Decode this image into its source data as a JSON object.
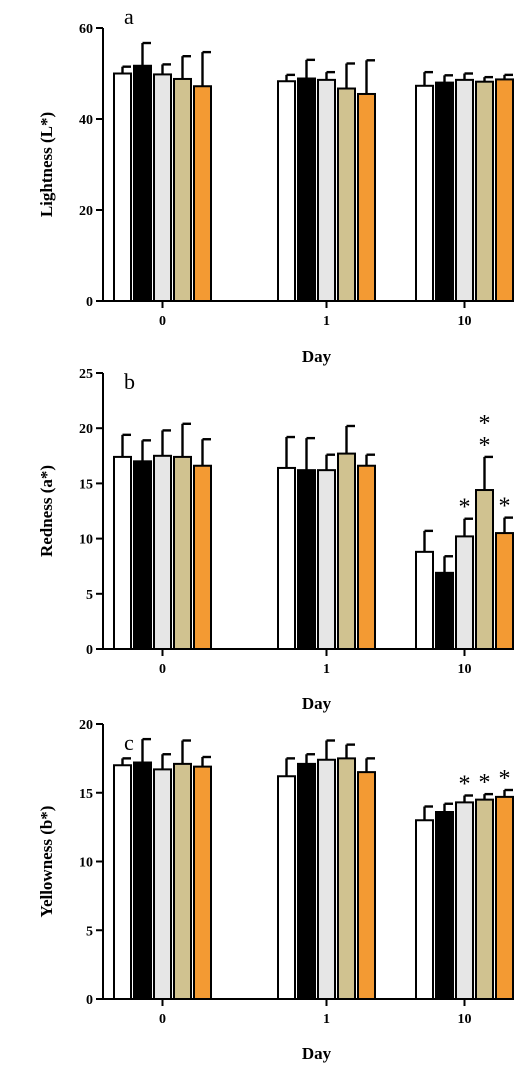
{
  "colors": {
    "series": [
      "#ffffff",
      "#000000",
      "#e6e6e6",
      "#d0c290",
      "#f39a33"
    ],
    "stroke": "#000000"
  },
  "chart_data": [
    {
      "type": "bar",
      "panel_label": "a",
      "ylabel": "Lightness (L*)",
      "xlabel": "Day",
      "ylim": [
        0,
        60
      ],
      "yticks": [
        0,
        20,
        40,
        60
      ],
      "categories": [
        "0",
        "1",
        "10"
      ],
      "grid": false,
      "series": [
        {
          "values": [
            50.0,
            48.3,
            47.3
          ],
          "errors": [
            1.5,
            1.4,
            3.0
          ],
          "significance": [
            "",
            "",
            ""
          ]
        },
        {
          "values": [
            51.7,
            48.9,
            48.0
          ],
          "errors": [
            5.0,
            4.1,
            1.6
          ],
          "significance": [
            "",
            "",
            ""
          ]
        },
        {
          "values": [
            49.8,
            48.6,
            48.6
          ],
          "errors": [
            2.2,
            1.7,
            1.4
          ],
          "significance": [
            "",
            "",
            ""
          ]
        },
        {
          "values": [
            48.8,
            46.7,
            48.2
          ],
          "errors": [
            5.0,
            5.5,
            1.0
          ],
          "significance": [
            "",
            "",
            ""
          ]
        },
        {
          "values": [
            47.2,
            45.5,
            48.7
          ],
          "errors": [
            7.5,
            7.4,
            1.0
          ],
          "significance": [
            "",
            "",
            ""
          ]
        }
      ]
    },
    {
      "type": "bar",
      "panel_label": "b",
      "ylabel": "Redness (a*)",
      "xlabel": "Day",
      "ylim": [
        0,
        25
      ],
      "yticks": [
        0,
        5,
        10,
        15,
        20,
        25
      ],
      "categories": [
        "0",
        "1",
        "10"
      ],
      "grid": false,
      "series": [
        {
          "values": [
            17.4,
            16.4,
            8.8
          ],
          "errors": [
            2.0,
            2.8,
            1.9
          ],
          "significance": [
            "",
            "",
            ""
          ]
        },
        {
          "values": [
            17.0,
            16.2,
            6.9
          ],
          "errors": [
            1.9,
            2.9,
            1.5
          ],
          "significance": [
            "",
            "",
            ""
          ]
        },
        {
          "values": [
            17.5,
            16.2,
            10.2
          ],
          "errors": [
            2.3,
            1.4,
            1.6
          ],
          "significance": [
            "",
            "",
            "*"
          ]
        },
        {
          "values": [
            17.4,
            17.7,
            14.4
          ],
          "errors": [
            3.0,
            2.5,
            3.0
          ],
          "significance": [
            "",
            "",
            "**"
          ]
        },
        {
          "values": [
            16.6,
            16.6,
            10.5
          ],
          "errors": [
            2.4,
            1.0,
            1.4
          ],
          "significance": [
            "",
            "",
            "*"
          ]
        }
      ]
    },
    {
      "type": "bar",
      "panel_label": "c",
      "ylabel": "Yellowness (b*)",
      "xlabel": "Day",
      "ylim": [
        0,
        20
      ],
      "yticks": [
        0,
        5,
        10,
        15,
        20
      ],
      "categories": [
        "0",
        "1",
        "10"
      ],
      "grid": false,
      "series": [
        {
          "values": [
            17.0,
            16.2,
            13.0
          ],
          "errors": [
            0.5,
            1.3,
            1.0
          ],
          "significance": [
            "",
            "",
            ""
          ]
        },
        {
          "values": [
            17.2,
            17.1,
            13.6
          ],
          "errors": [
            1.7,
            0.7,
            0.6
          ],
          "significance": [
            "",
            "",
            ""
          ]
        },
        {
          "values": [
            16.7,
            17.4,
            14.3
          ],
          "errors": [
            1.1,
            1.4,
            0.5
          ],
          "significance": [
            "",
            "",
            "*"
          ]
        },
        {
          "values": [
            17.1,
            17.5,
            14.5
          ],
          "errors": [
            1.7,
            1.0,
            0.4
          ],
          "significance": [
            "",
            "",
            "*"
          ]
        },
        {
          "values": [
            16.9,
            16.5,
            14.7
          ],
          "errors": [
            0.7,
            1.0,
            0.5
          ],
          "significance": [
            "",
            "",
            "*"
          ]
        }
      ]
    }
  ]
}
